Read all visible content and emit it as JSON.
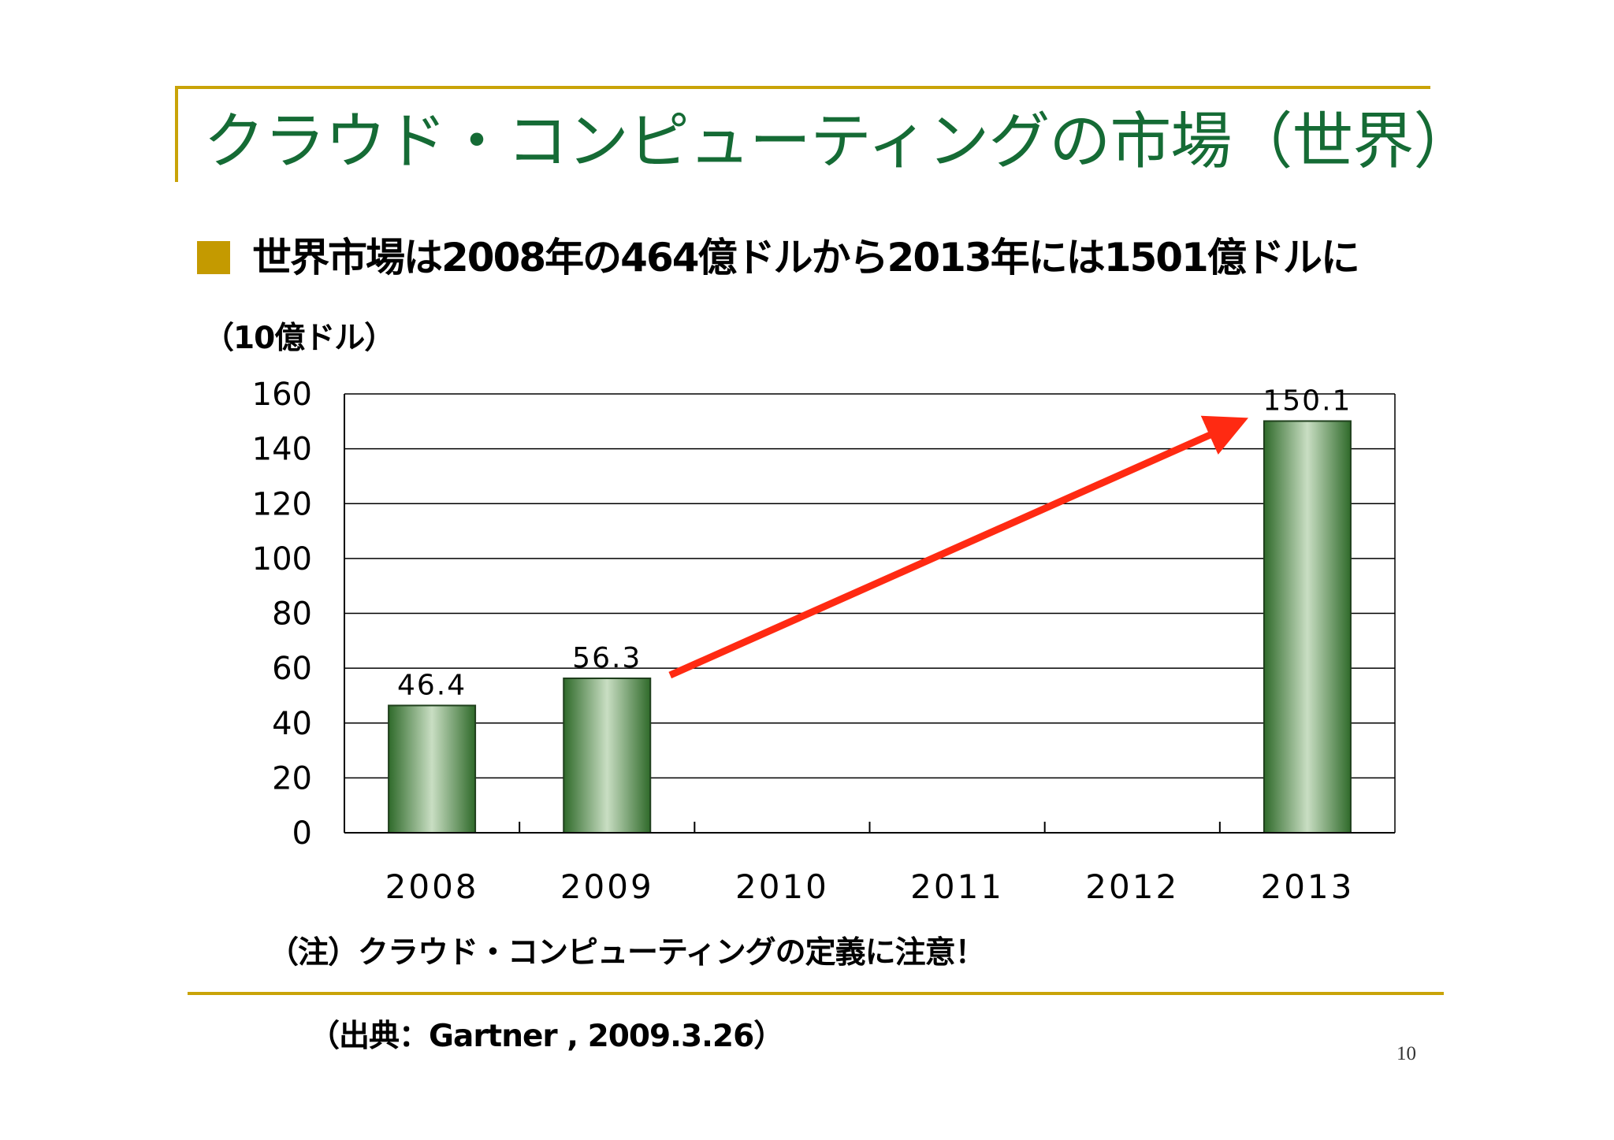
{
  "slide": {
    "title": "クラウド・コンピューティングの市場（世界）",
    "bullet": "世界市場は2008年の464億ドルから2013年には1501億ドルに",
    "unit": "（10億ドル）",
    "note": "（注）クラウド・コンピューティングの定義に注意！",
    "source": "（出典：Gartner , 2009.3.26）",
    "page_number": "10"
  },
  "colors": {
    "title": "#156b35",
    "accent_line": "#c9a308",
    "bullet_square": "#c49a00",
    "bar_dark": "#2f6a2a",
    "bar_light": "#c9dec3",
    "grid": "#000000",
    "arrow": "#ff2a12"
  },
  "chart_data": {
    "type": "bar",
    "title": "",
    "xlabel": "",
    "ylabel": "（10億ドル）",
    "categories": [
      "2008",
      "2009",
      "2010",
      "2011",
      "2012",
      "2013"
    ],
    "values": [
      46.4,
      56.3,
      null,
      null,
      null,
      150.1
    ],
    "data_labels": [
      "46.4",
      "56.3",
      "",
      "",
      "",
      "150.1"
    ],
    "ylim": [
      0,
      160
    ],
    "yticks": [
      "0",
      "20",
      "40",
      "60",
      "80",
      "100",
      "120",
      "140",
      "160"
    ],
    "grid": true,
    "annotations": [
      {
        "type": "arrow",
        "from_category": "2009",
        "from_value": 56.3,
        "to_category": "2013",
        "to_value": 150.1,
        "meaning": "growth trend"
      }
    ]
  }
}
